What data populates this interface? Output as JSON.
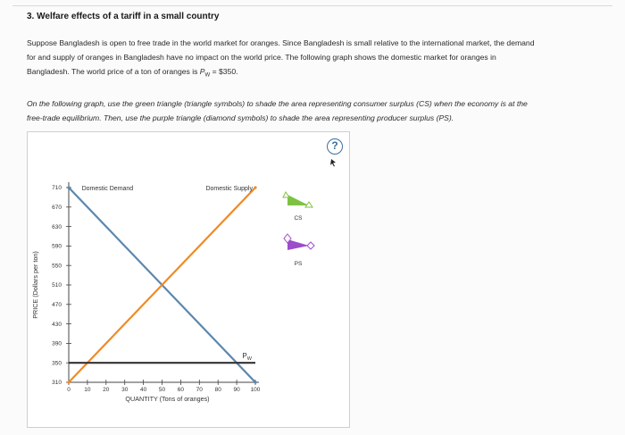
{
  "question": {
    "title": "3. Welfare effects of a tariff in a small country",
    "paragraph1_line1": "Suppose Bangladesh is open to free trade in the world market for oranges. Since Bangladesh is small relative to the international market, the demand",
    "paragraph1_line2": "for and supply of oranges in Bangladesh have no impact on the world price. The following graph shows the domestic market for oranges in",
    "paragraph1_line3_prefix": "Bangladesh. The world price of a ton of oranges is ",
    "paragraph1_pw_symbol": "P",
    "paragraph1_pw_sub": "W",
    "paragraph1_line3_suffix": " = $350.",
    "paragraph2_line1": "On the following graph, use the green triangle (triangle symbols) to shade the area representing consumer surplus (CS) when the economy is at the",
    "paragraph2_line2": "free-trade equilibrium. Then, use the purple triangle (diamond symbols) to shade the area representing producer surplus (PS)."
  },
  "help_button": {
    "label": "?"
  },
  "chart_data": {
    "type": "line",
    "xlabel": "QUANTITY (Tons of oranges)",
    "ylabel": "PRICE (Dollars per ton)",
    "xlim": [
      0,
      100
    ],
    "ylim": [
      310,
      710
    ],
    "x_ticks": [
      "0",
      "10",
      "20",
      "30",
      "40",
      "50",
      "60",
      "70",
      "80",
      "90",
      "100"
    ],
    "y_ticks": [
      "710",
      "670",
      "630",
      "590",
      "550",
      "510",
      "470",
      "430",
      "390",
      "350",
      "310"
    ],
    "series": [
      {
        "name": "Domestic Demand",
        "color": "#5b87ad",
        "points": [
          [
            0,
            710
          ],
          [
            100,
            310
          ]
        ]
      },
      {
        "name": "Domestic Supply",
        "color": "#f08a24",
        "points": [
          [
            0,
            310
          ],
          [
            100,
            710
          ]
        ]
      },
      {
        "name": "Pw",
        "color": "#333333",
        "points": [
          [
            0,
            350
          ],
          [
            100,
            350
          ]
        ]
      }
    ],
    "world_price_label": "P",
    "world_price_sub": "W"
  },
  "palette": {
    "cs_label": "CS",
    "cs_color": "#7dc242",
    "ps_label": "PS",
    "ps_color": "#9b4dca"
  }
}
